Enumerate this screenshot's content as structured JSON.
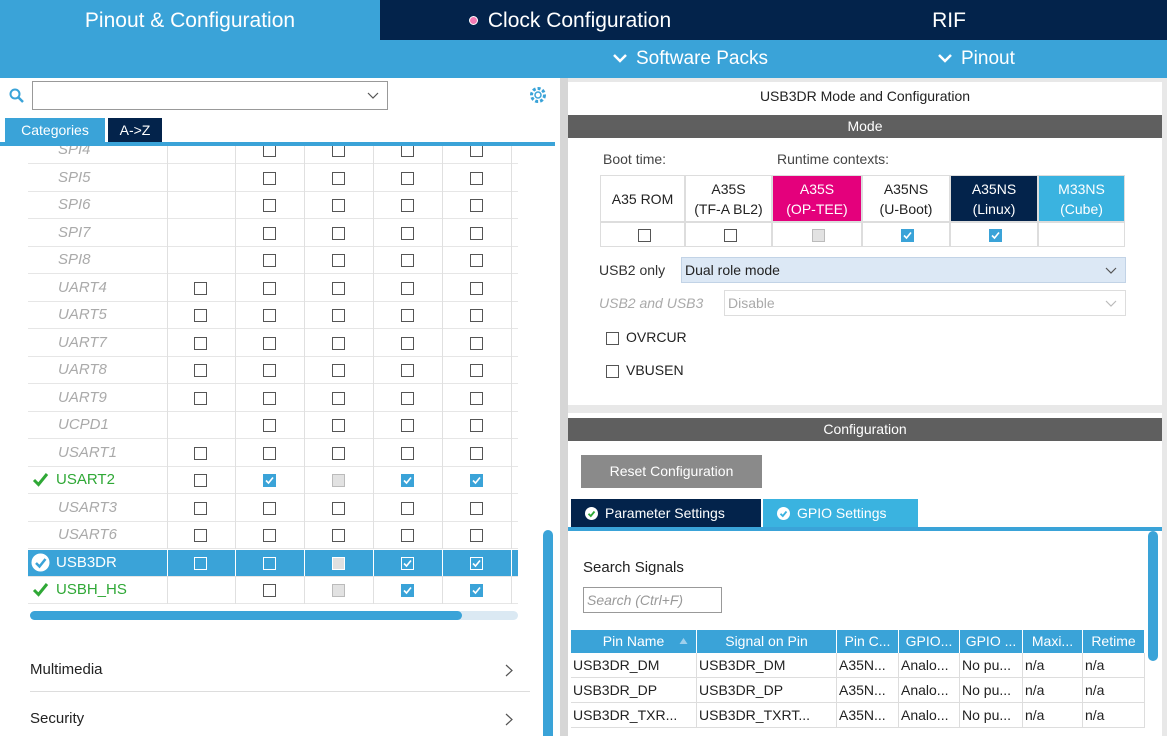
{
  "tabs": [
    {
      "label": "Pinout & Configuration",
      "active": true
    },
    {
      "label": "Clock Configuration",
      "active": false
    },
    {
      "label": "RIF",
      "active": false
    }
  ],
  "subtabs": [
    "Software Packs",
    "Pinout"
  ],
  "left": {
    "category_tabs": [
      {
        "label": "Categories",
        "active": true
      },
      {
        "label": "A->Z",
        "active": false
      }
    ],
    "rows": [
      {
        "name": "SPI4",
        "enabled": false,
        "selected": false,
        "checks": [
          null,
          "off",
          "off",
          "off",
          "off"
        ]
      },
      {
        "name": "SPI5",
        "enabled": false,
        "selected": false,
        "checks": [
          null,
          "off",
          "off",
          "off",
          "off"
        ]
      },
      {
        "name": "SPI6",
        "enabled": false,
        "selected": false,
        "checks": [
          null,
          "off",
          "off",
          "off",
          "off"
        ]
      },
      {
        "name": "SPI7",
        "enabled": false,
        "selected": false,
        "checks": [
          null,
          "off",
          "off",
          "off",
          "off"
        ]
      },
      {
        "name": "SPI8",
        "enabled": false,
        "selected": false,
        "checks": [
          null,
          "off",
          "off",
          "off",
          "off"
        ]
      },
      {
        "name": "UART4",
        "enabled": false,
        "selected": false,
        "checks": [
          "off",
          "off",
          "off",
          "off",
          "off"
        ]
      },
      {
        "name": "UART5",
        "enabled": false,
        "selected": false,
        "checks": [
          "off",
          "off",
          "off",
          "off",
          "off"
        ]
      },
      {
        "name": "UART7",
        "enabled": false,
        "selected": false,
        "checks": [
          "off",
          "off",
          "off",
          "off",
          "off"
        ]
      },
      {
        "name": "UART8",
        "enabled": false,
        "selected": false,
        "checks": [
          "off",
          "off",
          "off",
          "off",
          "off"
        ]
      },
      {
        "name": "UART9",
        "enabled": false,
        "selected": false,
        "checks": [
          "off",
          "off",
          "off",
          "off",
          "off"
        ]
      },
      {
        "name": "UCPD1",
        "enabled": false,
        "selected": false,
        "checks": [
          null,
          "off",
          "off",
          "off",
          "off"
        ]
      },
      {
        "name": "USART1",
        "enabled": false,
        "selected": false,
        "checks": [
          "off",
          "off",
          "off",
          "off",
          "off"
        ]
      },
      {
        "name": "USART2",
        "enabled": true,
        "selected": false,
        "checks": [
          "off",
          "on",
          "disabled",
          "on",
          "on"
        ]
      },
      {
        "name": "USART3",
        "enabled": false,
        "selected": false,
        "checks": [
          "off",
          "off",
          "off",
          "off",
          "off"
        ]
      },
      {
        "name": "USART6",
        "enabled": false,
        "selected": false,
        "checks": [
          "off",
          "off",
          "off",
          "off",
          "off"
        ]
      },
      {
        "name": "USB3DR",
        "enabled": true,
        "selected": true,
        "checks": [
          "off",
          "off",
          "disabled",
          "on",
          "on"
        ]
      },
      {
        "name": "USBH_HS",
        "enabled": true,
        "selected": false,
        "checks": [
          null,
          "off",
          "disabled",
          "on",
          "on"
        ]
      }
    ],
    "categories": [
      "Multimedia",
      "Security"
    ]
  },
  "mode": {
    "title": "USB3DR Mode and Configuration",
    "header": "Mode",
    "boot_time": "Boot time:",
    "runtime": "Runtime contexts:",
    "contexts": [
      {
        "lines": [
          "A35 ROM"
        ],
        "color": null,
        "state": "off"
      },
      {
        "lines": [
          "A35S",
          "(TF-A  BL2)"
        ],
        "color": null,
        "state": "off"
      },
      {
        "lines": [
          "A35S",
          "(OP-TEE)"
        ],
        "color": "#e4007c",
        "state": "disabled"
      },
      {
        "lines": [
          "A35NS",
          "(U-Boot)"
        ],
        "color": null,
        "state": "on"
      },
      {
        "lines": [
          "A35NS",
          "(Linux)"
        ],
        "color": "#03234b",
        "state": "on"
      },
      {
        "lines": [
          "M33NS",
          "(Cube)"
        ],
        "color": "#3ab3e0",
        "state": null
      }
    ],
    "selects": [
      {
        "label": "USB2 only",
        "value": "Dual role mode",
        "enabled": true
      },
      {
        "label": "USB2 and USB3",
        "value": "Disable",
        "enabled": false
      }
    ],
    "options": [
      {
        "label": "OVRCUR",
        "checked": false
      },
      {
        "label": "VBUSEN",
        "checked": false
      }
    ]
  },
  "config": {
    "header": "Configuration",
    "reset": "Reset Configuration",
    "tabs": [
      {
        "label": "Parameter Settings",
        "active": false
      },
      {
        "label": "GPIO Settings",
        "active": true
      }
    ],
    "search_label": "Search Signals",
    "search_placeholder": "Search (Ctrl+F)",
    "columns": [
      "Pin Name",
      "Signal on Pin",
      "Pin C...",
      "GPIO...",
      "GPIO ...",
      "Maxi...",
      "Retime"
    ],
    "rows": [
      [
        "USB3DR_DM",
        "USB3DR_DM",
        "A35N...",
        "Analo...",
        "No pu...",
        "n/a",
        "n/a"
      ],
      [
        "USB3DR_DP",
        "USB3DR_DP",
        "A35N...",
        "Analo...",
        "No pu...",
        "n/a",
        "n/a"
      ],
      [
        "USB3DR_TXR...",
        "USB3DR_TXRT...",
        "A35N...",
        "Analo...",
        "No pu...",
        "n/a",
        "n/a"
      ]
    ]
  }
}
